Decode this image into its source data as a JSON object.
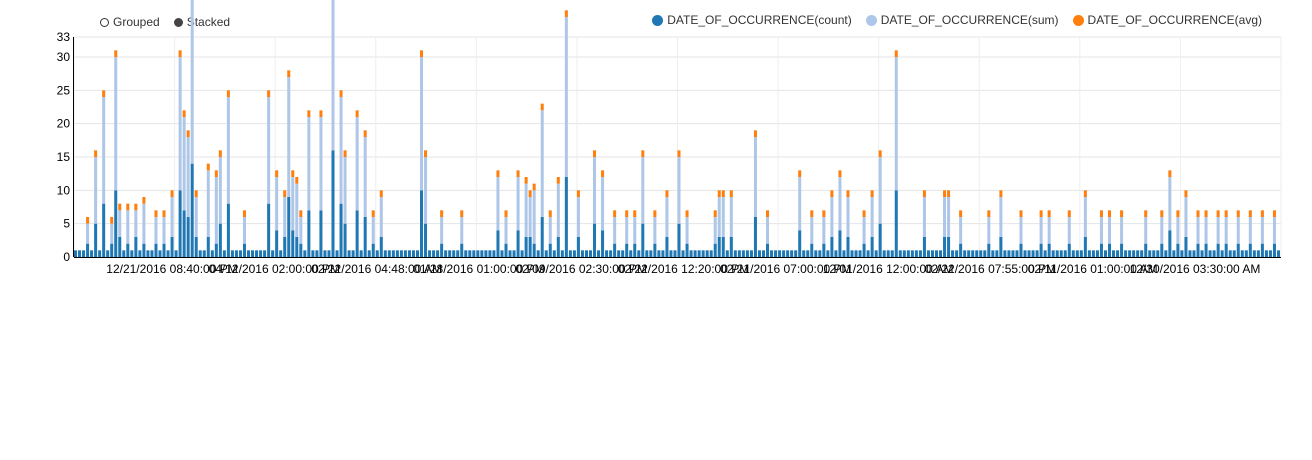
{
  "controls": {
    "grouped_label": "Grouped",
    "stacked_label": "Stacked",
    "selected": "Stacked"
  },
  "legend": [
    {
      "label": "DATE_OF_OCCURRENCE(count)",
      "color": "#1f77b4"
    },
    {
      "label": "DATE_OF_OCCURRENCE(sum)",
      "color": "#aec7e8"
    },
    {
      "label": "DATE_OF_OCCURRENCE(avg)",
      "color": "#ff7f0e"
    }
  ],
  "chart_data": {
    "type": "bar",
    "stacked": true,
    "grid": true,
    "legend_position": "top-right",
    "ylim": [
      0,
      33
    ],
    "yticks": [
      0,
      5,
      10,
      15,
      20,
      25,
      30,
      33
    ],
    "xtick_labels": [
      "12/21/2016 08:40:00 PM",
      "04/12/2016 02:00:00 PM",
      "02/22/2016 04:48:00 AM",
      "01/28/2016 01:00:00 PM",
      "02/09/2016 02:30:00 PM",
      "02/22/2016 12:20:00 PM",
      "02/21/2016 07:00:00 PM",
      "12/01/2016 12:00:00 AM",
      "02/22/2016 07:55:00 PM",
      "02/11/2016 01:00:00 AM",
      "12/30/2016 03:30:00 AM"
    ],
    "bar_count": 300,
    "peaks": [
      {
        "i": 3,
        "count": 2,
        "sum": 3
      },
      {
        "i": 5,
        "count": 5,
        "sum": 10
      },
      {
        "i": 7,
        "count": 8,
        "sum": 16
      },
      {
        "i": 9,
        "count": 2,
        "sum": 3
      },
      {
        "i": 10,
        "count": 10,
        "sum": 20
      },
      {
        "i": 11,
        "count": 3,
        "sum": 4
      },
      {
        "i": 13,
        "count": 2,
        "sum": 5
      },
      {
        "i": 15,
        "count": 3,
        "sum": 4
      },
      {
        "i": 17,
        "count": 2,
        "sum": 6
      },
      {
        "i": 20,
        "count": 2,
        "sum": 4
      },
      {
        "i": 22,
        "count": 2,
        "sum": 4
      },
      {
        "i": 24,
        "count": 3,
        "sum": 6
      },
      {
        "i": 26,
        "count": 10,
        "sum": 20
      },
      {
        "i": 27,
        "count": 7,
        "sum": 14
      },
      {
        "i": 28,
        "count": 6,
        "sum": 12
      },
      {
        "i": 29,
        "count": 14,
        "sum": 28
      },
      {
        "i": 30,
        "count": 3,
        "sum": 6
      },
      {
        "i": 33,
        "count": 3,
        "sum": 10
      },
      {
        "i": 35,
        "count": 2,
        "sum": 10
      },
      {
        "i": 36,
        "count": 5,
        "sum": 10
      },
      {
        "i": 38,
        "count": 8,
        "sum": 16
      },
      {
        "i": 42,
        "count": 2,
        "sum": 4
      },
      {
        "i": 48,
        "count": 8,
        "sum": 16
      },
      {
        "i": 50,
        "count": 4,
        "sum": 8
      },
      {
        "i": 52,
        "count": 3,
        "sum": 6
      },
      {
        "i": 53,
        "count": 9,
        "sum": 18
      },
      {
        "i": 54,
        "count": 4,
        "sum": 8
      },
      {
        "i": 55,
        "count": 3,
        "sum": 8
      },
      {
        "i": 56,
        "count": 2,
        "sum": 4
      },
      {
        "i": 58,
        "count": 7,
        "sum": 14
      },
      {
        "i": 61,
        "count": 7,
        "sum": 14
      },
      {
        "i": 64,
        "count": 16,
        "sum": 32
      },
      {
        "i": 66,
        "count": 8,
        "sum": 16
      },
      {
        "i": 67,
        "count": 5,
        "sum": 10
      },
      {
        "i": 70,
        "count": 7,
        "sum": 14
      },
      {
        "i": 72,
        "count": 6,
        "sum": 12
      },
      {
        "i": 74,
        "count": 2,
        "sum": 4
      },
      {
        "i": 76,
        "count": 3,
        "sum": 6
      },
      {
        "i": 86,
        "count": 10,
        "sum": 20
      },
      {
        "i": 87,
        "count": 5,
        "sum": 10
      },
      {
        "i": 91,
        "count": 2,
        "sum": 4
      },
      {
        "i": 96,
        "count": 2,
        "sum": 4
      },
      {
        "i": 105,
        "count": 4,
        "sum": 8
      },
      {
        "i": 107,
        "count": 2,
        "sum": 4
      },
      {
        "i": 110,
        "count": 4,
        "sum": 8
      },
      {
        "i": 112,
        "count": 3,
        "sum": 8
      },
      {
        "i": 113,
        "count": 3,
        "sum": 6
      },
      {
        "i": 114,
        "count": 2,
        "sum": 8
      },
      {
        "i": 116,
        "count": 6,
        "sum": 16
      },
      {
        "i": 118,
        "count": 2,
        "sum": 4
      },
      {
        "i": 120,
        "count": 3,
        "sum": 8
      },
      {
        "i": 122,
        "count": 12,
        "sum": 24
      },
      {
        "i": 125,
        "count": 3,
        "sum": 6
      },
      {
        "i": 129,
        "count": 5,
        "sum": 10
      },
      {
        "i": 131,
        "count": 4,
        "sum": 8
      },
      {
        "i": 134,
        "count": 2,
        "sum": 4
      },
      {
        "i": 137,
        "count": 2,
        "sum": 4
      },
      {
        "i": 139,
        "count": 2,
        "sum": 4
      },
      {
        "i": 141,
        "count": 5,
        "sum": 10
      },
      {
        "i": 144,
        "count": 2,
        "sum": 4
      },
      {
        "i": 147,
        "count": 3,
        "sum": 6
      },
      {
        "i": 150,
        "count": 5,
        "sum": 10
      },
      {
        "i": 152,
        "count": 2,
        "sum": 4
      },
      {
        "i": 159,
        "count": 2,
        "sum": 4
      },
      {
        "i": 160,
        "count": 3,
        "sum": 6
      },
      {
        "i": 161,
        "count": 3,
        "sum": 6
      },
      {
        "i": 163,
        "count": 3,
        "sum": 6
      },
      {
        "i": 169,
        "count": 6,
        "sum": 12
      },
      {
        "i": 172,
        "count": 2,
        "sum": 4
      },
      {
        "i": 180,
        "count": 4,
        "sum": 8
      },
      {
        "i": 183,
        "count": 2,
        "sum": 4
      },
      {
        "i": 186,
        "count": 2,
        "sum": 4
      },
      {
        "i": 188,
        "count": 3,
        "sum": 6
      },
      {
        "i": 190,
        "count": 4,
        "sum": 8
      },
      {
        "i": 192,
        "count": 3,
        "sum": 6
      },
      {
        "i": 196,
        "count": 2,
        "sum": 4
      },
      {
        "i": 198,
        "count": 3,
        "sum": 6
      },
      {
        "i": 200,
        "count": 5,
        "sum": 10
      },
      {
        "i": 204,
        "count": 10,
        "sum": 20
      },
      {
        "i": 211,
        "count": 3,
        "sum": 6
      },
      {
        "i": 216,
        "count": 3,
        "sum": 6
      },
      {
        "i": 217,
        "count": 3,
        "sum": 6
      },
      {
        "i": 220,
        "count": 2,
        "sum": 4
      },
      {
        "i": 227,
        "count": 2,
        "sum": 4
      },
      {
        "i": 230,
        "count": 3,
        "sum": 6
      },
      {
        "i": 235,
        "count": 2,
        "sum": 4
      },
      {
        "i": 240,
        "count": 2,
        "sum": 4
      },
      {
        "i": 242,
        "count": 2,
        "sum": 4
      },
      {
        "i": 247,
        "count": 2,
        "sum": 4
      },
      {
        "i": 251,
        "count": 3,
        "sum": 6
      },
      {
        "i": 255,
        "count": 2,
        "sum": 4
      },
      {
        "i": 257,
        "count": 2,
        "sum": 4
      },
      {
        "i": 260,
        "count": 2,
        "sum": 4
      },
      {
        "i": 266,
        "count": 2,
        "sum": 4
      },
      {
        "i": 270,
        "count": 2,
        "sum": 4
      },
      {
        "i": 286,
        "count": 2,
        "sum": 4
      },
      {
        "i": 272,
        "count": 4,
        "sum": 8
      },
      {
        "i": 274,
        "count": 2,
        "sum": 4
      },
      {
        "i": 276,
        "count": 3,
        "sum": 6
      },
      {
        "i": 279,
        "count": 2,
        "sum": 4
      },
      {
        "i": 281,
        "count": 2,
        "sum": 4
      },
      {
        "i": 284,
        "count": 2,
        "sum": 4
      },
      {
        "i": 289,
        "count": 2,
        "sum": 4
      },
      {
        "i": 292,
        "count": 2,
        "sum": 4
      },
      {
        "i": 295,
        "count": 2,
        "sum": 4
      },
      {
        "i": 298,
        "count": 2,
        "sum": 4
      }
    ],
    "baseline": {
      "count": 1,
      "sum": 0,
      "avg": 0
    },
    "avg_per_bar": 1
  }
}
